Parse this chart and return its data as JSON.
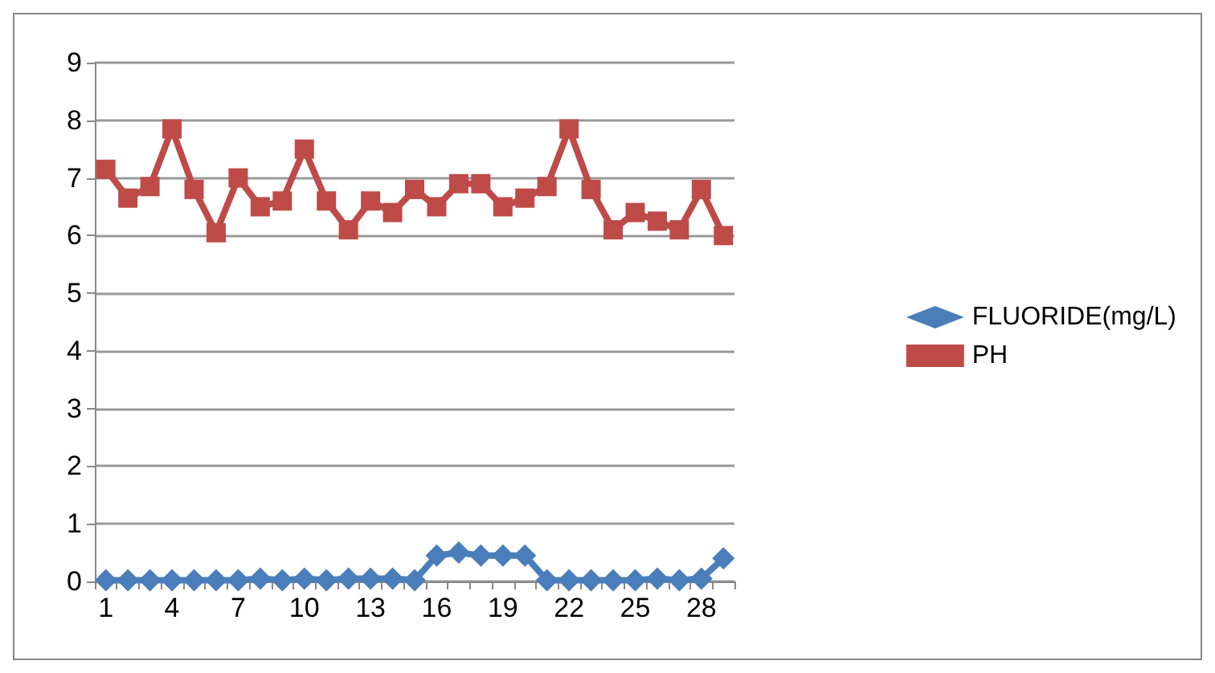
{
  "chart_data": {
    "type": "line",
    "categories": [
      "1",
      null,
      null,
      "4",
      null,
      null,
      "7",
      null,
      null,
      "10",
      null,
      null,
      "13",
      null,
      null,
      "16",
      null,
      null,
      "19",
      null,
      null,
      "22",
      null,
      null,
      "25",
      null,
      null,
      "28",
      null
    ],
    "series": [
      {
        "name": "FLUORIDE(mg/L)",
        "color": "#4a7ebb",
        "marker": "diamond",
        "values": [
          0.02,
          0.02,
          0.02,
          0.02,
          0.02,
          0.02,
          0.02,
          0.05,
          0.02,
          0.05,
          0.02,
          0.05,
          0.05,
          0.05,
          0.02,
          0.45,
          0.5,
          0.45,
          0.45,
          0.45,
          0.02,
          0.02,
          0.02,
          0.02,
          0.02,
          0.05,
          0.02,
          0.05,
          0.4
        ]
      },
      {
        "name": "PH",
        "color": "#be4b48",
        "marker": "square",
        "values": [
          7.15,
          6.65,
          6.85,
          7.85,
          6.8,
          6.05,
          7.0,
          6.5,
          6.6,
          7.5,
          6.6,
          6.1,
          6.6,
          6.4,
          6.8,
          6.5,
          6.9,
          6.9,
          6.5,
          6.65,
          6.85,
          7.85,
          6.8,
          6.1,
          6.4,
          6.25,
          6.1,
          6.8,
          6.0
        ]
      }
    ],
    "ylim": [
      0,
      9
    ],
    "yticks": [
      0,
      1,
      2,
      3,
      4,
      5,
      6,
      7,
      8,
      9
    ],
    "grid": "y",
    "legend": "right"
  }
}
